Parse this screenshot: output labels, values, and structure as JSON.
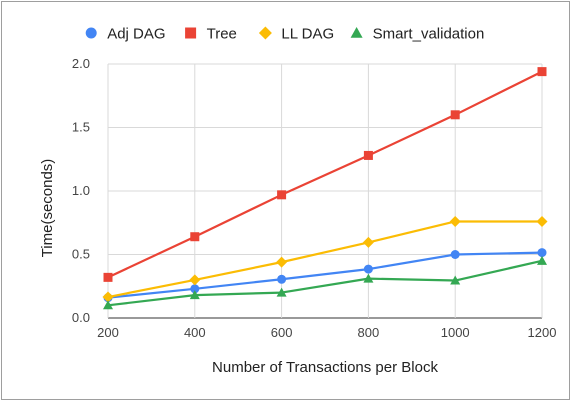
{
  "chart_data": {
    "type": "line",
    "title": "",
    "xlabel": "Number of Transactions per Block",
    "ylabel": "Time(seconds)",
    "x": [
      200,
      400,
      600,
      800,
      1000,
      1200
    ],
    "x_ticks": [
      "200",
      "400",
      "600",
      "800",
      "1000",
      "1200"
    ],
    "ylim": [
      0,
      2.0
    ],
    "y_ticks": [
      "0.0",
      "0.5",
      "1.0",
      "1.5",
      "2.0"
    ],
    "grid": true,
    "legend_position": "top",
    "series": [
      {
        "name": "Adj DAG",
        "color": "#4285f4",
        "marker": "circle",
        "values": [
          0.16,
          0.23,
          0.305,
          0.385,
          0.5,
          0.515
        ]
      },
      {
        "name": "Tree",
        "color": "#ea4335",
        "marker": "square",
        "values": [
          0.32,
          0.64,
          0.97,
          1.28,
          1.6,
          1.94
        ]
      },
      {
        "name": "LL DAG",
        "color": "#fbbc04",
        "marker": "diamond",
        "values": [
          0.165,
          0.3,
          0.44,
          0.595,
          0.76,
          0.76
        ]
      },
      {
        "name": "Smart_validation",
        "color": "#34a853",
        "marker": "triangle",
        "values": [
          0.1,
          0.18,
          0.2,
          0.31,
          0.295,
          0.45
        ]
      }
    ]
  }
}
